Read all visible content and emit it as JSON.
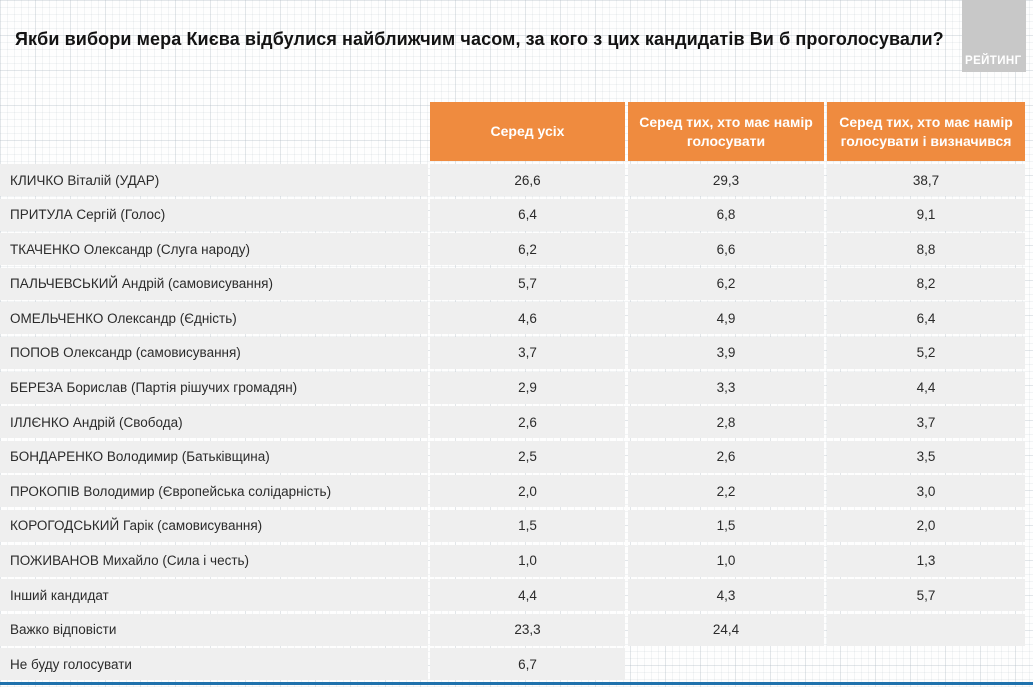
{
  "branding": {
    "logo_text": "РЕЙТИНГ"
  },
  "colors": {
    "header_orange": "#ef8b3f",
    "row_stripe": "#efefef",
    "logo_gray": "#c8c8c8",
    "bottom_line_blue": "#1f72ad"
  },
  "chart_data": {
    "type": "table",
    "title": "Якби вибори мера Києва відбулися найближчим часом, за кого з цих кандидатів Ви б проголосували?",
    "columns": [
      "Серед усіх",
      "Серед тих, хто має намір голосувати",
      "Серед тих, хто має намір голосувати і визначився"
    ],
    "rows": [
      {
        "name": "КЛИЧКО Віталій (УДАР)",
        "values": [
          "26,6",
          "29,3",
          "38,7"
        ]
      },
      {
        "name": "ПРИТУЛА Сергій (Голос)",
        "values": [
          "6,4",
          "6,8",
          "9,1"
        ]
      },
      {
        "name": "ТКАЧЕНКО Олександр (Слуга народу)",
        "values": [
          "6,2",
          "6,6",
          "8,8"
        ]
      },
      {
        "name": "ПАЛЬЧЕВСЬКИЙ Андрій (самовисування)",
        "values": [
          "5,7",
          "6,2",
          "8,2"
        ]
      },
      {
        "name": "ОМЕЛЬЧЕНКО Олександр (Єдність)",
        "values": [
          "4,6",
          "4,9",
          "6,4"
        ]
      },
      {
        "name": "ПОПОВ Олександр (самовисування)",
        "values": [
          "3,7",
          "3,9",
          "5,2"
        ]
      },
      {
        "name": "БЕРЕЗА Борислав (Партія рішучих громадян)",
        "values": [
          "2,9",
          "3,3",
          "4,4"
        ]
      },
      {
        "name": "ІЛЛЄНКО Андрій (Свобода)",
        "values": [
          "2,6",
          "2,8",
          "3,7"
        ]
      },
      {
        "name": "БОНДАРЕНКО Володимир (Батьківщина)",
        "values": [
          "2,5",
          "2,6",
          "3,5"
        ]
      },
      {
        "name": "ПРОКОПІВ Володимир (Європейська солідарність)",
        "values": [
          "2,0",
          "2,2",
          "3,0"
        ]
      },
      {
        "name": "КОРОГОДСЬКИЙ Гарік (самовисування)",
        "values": [
          "1,5",
          "1,5",
          "2,0"
        ]
      },
      {
        "name": "ПОЖИВАНОВ Михайло (Сила і честь)",
        "values": [
          "1,0",
          "1,0",
          "1,3"
        ]
      },
      {
        "name": "Інший кандидат",
        "values": [
          "4,4",
          "4,3",
          "5,7"
        ]
      },
      {
        "name": "Важко відповісти",
        "values": [
          "23,3",
          "24,4",
          ""
        ]
      },
      {
        "name": "Не буду голосувати",
        "values": [
          "6,7",
          null,
          null
        ]
      }
    ]
  }
}
